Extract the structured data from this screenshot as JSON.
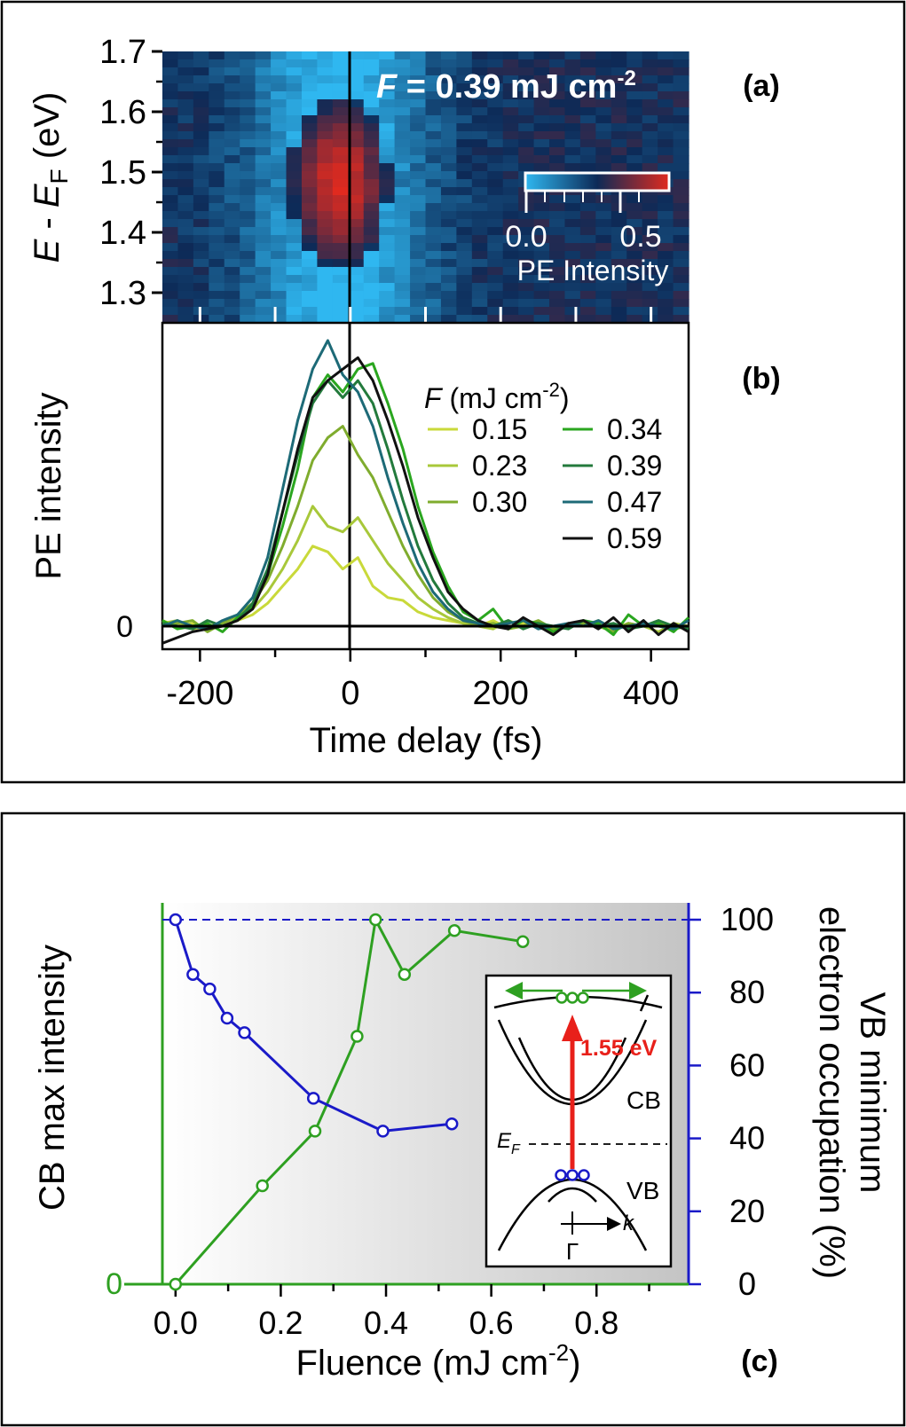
{
  "chart_data": [
    {
      "type": "heatmap",
      "panel_label": "(a)",
      "annotation": {
        "symbol": "F",
        "text": " = 0.39 mJ cm",
        "exponent": "-2"
      },
      "ylabel": {
        "parts": [
          "E",
          " - ",
          "E",
          "F",
          " (eV)"
        ]
      },
      "yticks": [
        "1.3",
        "1.4",
        "1.5",
        "1.6",
        "1.7"
      ],
      "ylim": [
        1.25,
        1.7
      ],
      "xlim": [
        -250,
        450
      ],
      "colorbar": {
        "ticks": [
          "0.0",
          "0.5"
        ],
        "label": "PE Intensity",
        "range": [
          0,
          0.65
        ],
        "colors": [
          "#2fb7f0",
          "#0d2a57",
          "#e02a1f"
        ]
      },
      "intensity_model": {
        "center_x": -15,
        "center_y": 1.48,
        "sigma_x": 55,
        "sigma_y": 0.12,
        "peak": 0.62,
        "background": 0.02
      }
    },
    {
      "type": "line",
      "panel_label": "(b)",
      "ylabel": "PE intensity",
      "yticks": [
        "0"
      ],
      "xlabel": "Time delay (fs)",
      "xticks": [
        "-200",
        "0",
        "200",
        "400"
      ],
      "xlim": [
        -250,
        450
      ],
      "ylim": [
        -0.06,
        1.0
      ],
      "legend_title": {
        "symbol": "F",
        "text": " (mJ cm",
        "exponent": "-2",
        "close": ")"
      },
      "x": [
        -250,
        -230,
        -210,
        -190,
        -170,
        -150,
        -130,
        -110,
        -90,
        -70,
        -50,
        -30,
        -10,
        10,
        30,
        50,
        70,
        90,
        110,
        130,
        150,
        170,
        190,
        210,
        230,
        250,
        270,
        290,
        310,
        330,
        350,
        370,
        390,
        410,
        430,
        450
      ],
      "series": [
        {
          "name": "0.15",
          "color": "#c9d93a",
          "values": [
            0.02,
            0.0,
            0.01,
            -0.01,
            0.0,
            0.02,
            0.04,
            0.08,
            0.14,
            0.2,
            0.28,
            0.26,
            0.2,
            0.24,
            0.14,
            0.1,
            0.09,
            0.05,
            0.03,
            0.02,
            0.01,
            0.0,
            0.02,
            -0.01,
            0.01,
            0.0,
            -0.02,
            0.01,
            0.0,
            0.02,
            -0.01,
            0.01,
            0.0,
            0.01,
            -0.01,
            0.0
          ]
        },
        {
          "name": "0.23",
          "color": "#a8c83a",
          "values": [
            0.01,
            0.02,
            -0.01,
            0.0,
            0.01,
            0.03,
            0.06,
            0.12,
            0.2,
            0.3,
            0.42,
            0.35,
            0.33,
            0.38,
            0.3,
            0.22,
            0.16,
            0.1,
            0.06,
            0.03,
            0.01,
            0.0,
            -0.01,
            0.02,
            0.0,
            0.01,
            -0.01,
            0.0,
            0.02,
            0.0,
            -0.01,
            0.01,
            0.0,
            -0.02,
            0.01,
            0.0
          ]
        },
        {
          "name": "0.30",
          "color": "#7fac2e",
          "values": [
            0.0,
            0.01,
            0.02,
            -0.02,
            0.01,
            0.04,
            0.08,
            0.16,
            0.28,
            0.42,
            0.58,
            0.66,
            0.7,
            0.6,
            0.52,
            0.4,
            0.28,
            0.18,
            0.1,
            0.05,
            0.02,
            0.0,
            0.01,
            -0.01,
            0.0,
            0.02,
            -0.01,
            0.0,
            0.01,
            0.0,
            -0.02,
            0.01,
            0.0,
            0.02,
            -0.01,
            0.0
          ]
        },
        {
          "name": "0.34",
          "color": "#2aa61f",
          "values": [
            0.02,
            -0.01,
            0.0,
            0.01,
            -0.02,
            0.03,
            0.07,
            0.18,
            0.35,
            0.55,
            0.8,
            0.88,
            0.82,
            0.9,
            0.92,
            0.78,
            0.62,
            0.42,
            0.26,
            0.14,
            0.05,
            0.02,
            0.06,
            -0.01,
            0.02,
            0.01,
            -0.02,
            0.0,
            0.02,
            0.01,
            -0.03,
            0.04,
            0.0,
            0.01,
            -0.02,
            0.03
          ]
        },
        {
          "name": "0.39",
          "color": "#237a3c",
          "values": [
            0.01,
            0.0,
            -0.01,
            0.02,
            0.0,
            0.02,
            0.08,
            0.2,
            0.4,
            0.6,
            0.78,
            0.86,
            0.8,
            0.86,
            0.78,
            0.62,
            0.44,
            0.28,
            0.16,
            0.08,
            0.03,
            0.01,
            0.0,
            0.02,
            -0.01,
            0.01,
            0.0,
            -0.01,
            0.02,
            0.0,
            0.01,
            -0.01,
            0.0,
            0.02,
            0.0,
            -0.01
          ]
        },
        {
          "name": "0.47",
          "color": "#1d6a77",
          "values": [
            0.0,
            0.02,
            0.0,
            -0.01,
            0.02,
            0.04,
            0.1,
            0.24,
            0.48,
            0.72,
            0.9,
            1.0,
            0.88,
            0.82,
            0.7,
            0.52,
            0.36,
            0.22,
            0.12,
            0.06,
            0.02,
            0.01,
            0.0,
            0.01,
            0.02,
            -0.01,
            0.0,
            0.01,
            0.0,
            0.02,
            -0.01,
            0.0,
            0.01,
            0.0,
            -0.01,
            0.02
          ]
        },
        {
          "name": "0.59",
          "color": "#111111",
          "values": [
            -0.06,
            -0.04,
            -0.02,
            -0.01,
            0.0,
            0.02,
            0.06,
            0.18,
            0.4,
            0.62,
            0.8,
            0.86,
            0.9,
            0.94,
            0.86,
            0.72,
            0.56,
            0.38,
            0.24,
            0.12,
            0.06,
            0.02,
            0.0,
            -0.01,
            0.03,
            0.0,
            -0.03,
            0.01,
            0.02,
            -0.01,
            0.03,
            -0.02,
            0.02,
            -0.03,
            0.01,
            -0.02
          ]
        }
      ]
    },
    {
      "type": "line",
      "panel_label": "(c)",
      "xlabel": {
        "text": "Fluence (mJ cm",
        "exponent": "-2",
        "close": ")"
      },
      "xticks": [
        "0.0",
        "0.2",
        "0.4",
        "0.6",
        "0.8"
      ],
      "xlim": [
        -0.025,
        0.975
      ],
      "ylabel_left": "CB max intensity",
      "yticks_left": [
        "0"
      ],
      "ylabel_right": [
        "VB minimum",
        "electron occupation (%)"
      ],
      "yticks_right": [
        "0",
        "20",
        "40",
        "60",
        "80",
        "100"
      ],
      "ylim_right": [
        0,
        100
      ],
      "reference_line_y": 100,
      "left_axis_color": "#2ea021",
      "right_axis_color": "#1a1ac8",
      "series": [
        {
          "name": "",
          "axis": "left",
          "color": "#2ea021",
          "x": [
            0.0,
            0.165,
            0.265,
            0.345,
            0.38,
            0.435,
            0.53,
            0.66
          ],
          "values": [
            0,
            27,
            42,
            68,
            100,
            85,
            97,
            94
          ]
        },
        {
          "name": "",
          "axis": "right",
          "color": "#1a1ac8",
          "x": [
            0.0,
            0.033,
            0.065,
            0.098,
            0.131,
            0.262,
            0.394,
            0.525
          ],
          "values": [
            100,
            85,
            81,
            73,
            69,
            51,
            42,
            44
          ]
        }
      ],
      "inset": {
        "labels": {
          "energy": "1.55 eV",
          "cb": "CB",
          "vb": "VB",
          "ef": "E",
          "ef_sub": "F",
          "k": "k",
          "gamma": "Γ"
        }
      }
    }
  ]
}
